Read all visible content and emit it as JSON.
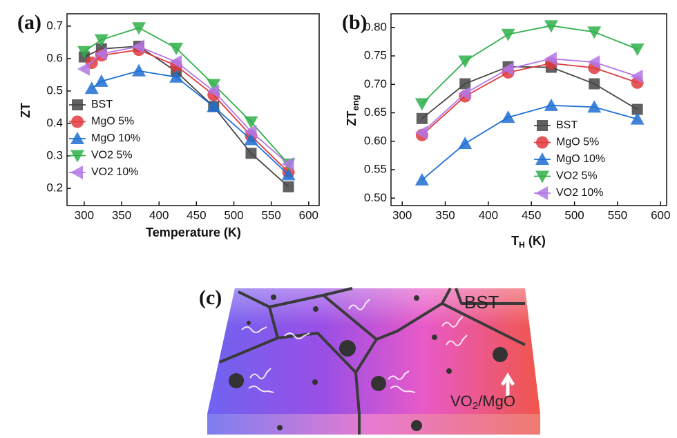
{
  "chart_data": [
    {
      "type": "line",
      "panel": "(a)",
      "xlabel": "Temperature (K)",
      "ylabel": "ZT",
      "xlim": [
        277,
        614
      ],
      "ylim": [
        0.147,
        0.738
      ],
      "xticks": [
        300,
        350,
        400,
        450,
        500,
        550,
        600
      ],
      "yticks": [
        0.2,
        0.3,
        0.4,
        0.5,
        0.6,
        0.7
      ],
      "legend": "lower left",
      "series": [
        {
          "name": "BST",
          "color": "#444444",
          "marker": "square",
          "x": [
            300,
            323,
            373,
            423,
            473,
            523,
            573
          ],
          "values": [
            0.605,
            0.63,
            0.638,
            0.56,
            0.452,
            0.308,
            0.205
          ]
        },
        {
          "name": "MgO 5%",
          "color": "#e03a3e",
          "marker": "circle",
          "x": [
            310,
            323,
            373,
            423,
            473,
            523,
            573
          ],
          "values": [
            0.587,
            0.61,
            0.627,
            0.578,
            0.488,
            0.362,
            0.25
          ]
        },
        {
          "name": "MgO 10%",
          "color": "#1f6fd4",
          "marker": "triangle-up",
          "x": [
            310,
            323,
            373,
            423,
            473,
            523,
            573
          ],
          "values": [
            0.508,
            0.53,
            0.562,
            0.543,
            0.452,
            0.35,
            0.242
          ]
        },
        {
          "name": "VO2 5%",
          "color": "#2fb04a",
          "marker": "triangle-down",
          "x": [
            300,
            323,
            373,
            423,
            473,
            523,
            573
          ],
          "values": [
            0.622,
            0.658,
            0.695,
            0.632,
            0.52,
            0.405,
            0.275
          ]
        },
        {
          "name": "VO2 10%",
          "color": "#b277e6",
          "marker": "triangle-left",
          "x": [
            300,
            323,
            373,
            423,
            473,
            523,
            573
          ],
          "values": [
            0.568,
            0.615,
            0.637,
            0.59,
            0.5,
            0.375,
            0.275
          ]
        }
      ]
    },
    {
      "type": "line",
      "panel": "(b)",
      "xlabel": {
        "base": "T",
        "sub": "H",
        "unit": "(K)"
      },
      "ylabel": {
        "base": "ZT",
        "sub": "eng"
      },
      "xlim": [
        287,
        607
      ],
      "ylim": [
        0.487,
        0.824
      ],
      "xticks": [
        300,
        350,
        400,
        450,
        500,
        550,
        600
      ],
      "yticks": [
        {
          "value": 0.5,
          "label": "0.50"
        },
        0.55,
        {
          "value": 0.6,
          "label": "0.60"
        },
        0.65,
        {
          "value": 0.7,
          "label": "0.70"
        },
        0.75,
        {
          "value": 0.8,
          "label": "0.80"
        }
      ],
      "legend": "lower right",
      "series": [
        {
          "name": "BST",
          "color": "#444444",
          "marker": "square",
          "x": [
            323,
            373,
            423,
            473,
            523,
            573
          ],
          "values": [
            0.64,
            0.701,
            0.731,
            0.73,
            0.701,
            0.656
          ]
        },
        {
          "name": "MgO 5%",
          "color": "#e03a3e",
          "marker": "circle",
          "x": [
            323,
            373,
            423,
            473,
            523,
            573
          ],
          "values": [
            0.611,
            0.679,
            0.721,
            0.737,
            0.729,
            0.703
          ]
        },
        {
          "name": "MgO 10%",
          "color": "#1f6fd4",
          "marker": "triangle-up",
          "x": [
            323,
            373,
            423,
            473,
            523,
            573
          ],
          "values": [
            0.532,
            0.596,
            0.642,
            0.663,
            0.66,
            0.639
          ]
        },
        {
          "name": "VO2 5%",
          "color": "#2fb04a",
          "marker": "triangle-down",
          "x": [
            323,
            373,
            423,
            473,
            523,
            573
          ],
          "values": [
            0.666,
            0.741,
            0.788,
            0.803,
            0.792,
            0.762
          ]
        },
        {
          "name": "VO2 10%",
          "color": "#b277e6",
          "marker": "triangle-left",
          "x": [
            323,
            373,
            423,
            473,
            523,
            573
          ],
          "values": [
            0.615,
            0.684,
            0.727,
            0.745,
            0.739,
            0.714
          ]
        }
      ]
    }
  ],
  "panel_c": {
    "label": "(c)",
    "material": "BST",
    "inclusion": {
      "base": "VO",
      "sub": "2",
      "rest": "/MgO"
    }
  }
}
